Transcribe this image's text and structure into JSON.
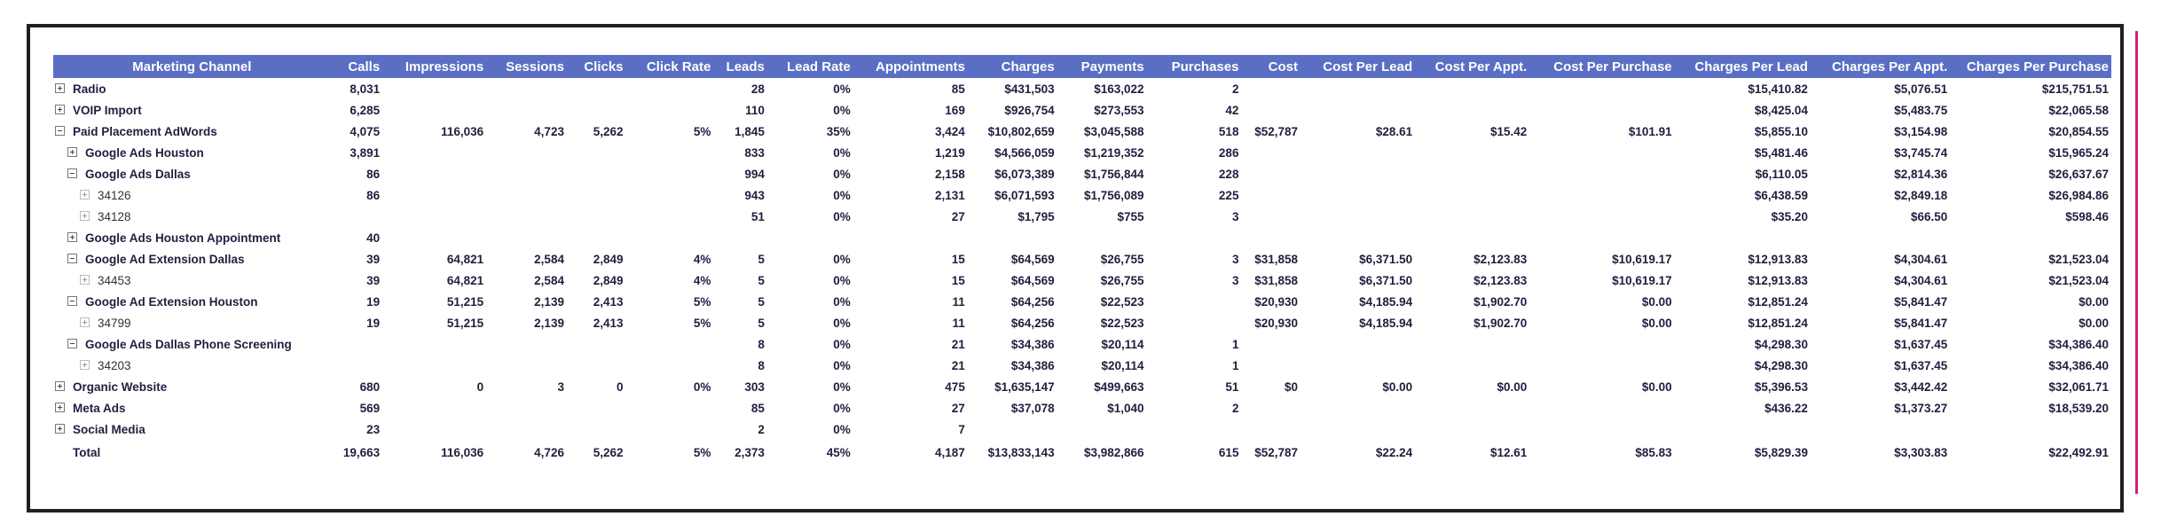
{
  "table": {
    "columns": [
      "Marketing Channel",
      "Calls",
      "Impressions",
      "Sessions",
      "Clicks",
      "Click Rate",
      "Leads",
      "Lead Rate",
      "Appointments",
      "Charges",
      "Payments",
      "Purchases",
      "Cost",
      "Cost Per Lead",
      "Cost Per Appt.",
      "Cost Per Purchase",
      "Charges Per Lead",
      "Charges Per Appt.",
      "Charges Per Purchase"
    ],
    "rows": [
      {
        "level": 0,
        "expander": "plus",
        "cells": [
          "Radio",
          "8,031",
          "",
          "",
          "",
          "",
          "28",
          "0%",
          "85",
          "$431,503",
          "$163,022",
          "2",
          "",
          "",
          "",
          "",
          "$15,410.82",
          "$5,076.51",
          "$215,751.51"
        ]
      },
      {
        "level": 0,
        "expander": "plus",
        "cells": [
          "VOIP Import",
          "6,285",
          "",
          "",
          "",
          "",
          "110",
          "0%",
          "169",
          "$926,754",
          "$273,553",
          "42",
          "",
          "",
          "",
          "",
          "$8,425.04",
          "$5,483.75",
          "$22,065.58"
        ]
      },
      {
        "level": 0,
        "expander": "minus",
        "cells": [
          "Paid Placement AdWords",
          "4,075",
          "116,036",
          "4,723",
          "5,262",
          "5%",
          "1,845",
          "35%",
          "3,424",
          "$10,802,659",
          "$3,045,588",
          "518",
          "$52,787",
          "$28.61",
          "$15.42",
          "$101.91",
          "$5,855.10",
          "$3,154.98",
          "$20,854.55"
        ]
      },
      {
        "level": 1,
        "expander": "plus",
        "cells": [
          "Google Ads Houston",
          "3,891",
          "",
          "",
          "",
          "",
          "833",
          "0%",
          "1,219",
          "$4,566,059",
          "$1,219,352",
          "286",
          "",
          "",
          "",
          "",
          "$5,481.46",
          "$3,745.74",
          "$15,965.24"
        ]
      },
      {
        "level": 1,
        "expander": "minus",
        "cells": [
          "Google Ads Dallas",
          "86",
          "",
          "",
          "",
          "",
          "994",
          "0%",
          "2,158",
          "$6,073,389",
          "$1,756,844",
          "228",
          "",
          "",
          "",
          "",
          "$6,110.05",
          "$2,814.36",
          "$26,637.67"
        ]
      },
      {
        "level": 2,
        "expander": "plus",
        "cells": [
          "34126",
          "86",
          "",
          "",
          "",
          "",
          "943",
          "0%",
          "2,131",
          "$6,071,593",
          "$1,756,089",
          "225",
          "",
          "",
          "",
          "",
          "$6,438.59",
          "$2,849.18",
          "$26,984.86"
        ]
      },
      {
        "level": 2,
        "expander": "plus",
        "cells": [
          "34128",
          "",
          "",
          "",
          "",
          "",
          "51",
          "0%",
          "27",
          "$1,795",
          "$755",
          "3",
          "",
          "",
          "",
          "",
          "$35.20",
          "$66.50",
          "$598.46"
        ]
      },
      {
        "level": 1,
        "expander": "plus",
        "cells": [
          "Google Ads Houston Appointment",
          "40",
          "",
          "",
          "",
          "",
          "",
          "",
          "",
          "",
          "",
          "",
          "",
          "",
          "",
          "",
          "",
          "",
          ""
        ]
      },
      {
        "level": 1,
        "expander": "minus",
        "cells": [
          "Google Ad Extension Dallas",
          "39",
          "64,821",
          "2,584",
          "2,849",
          "4%",
          "5",
          "0%",
          "15",
          "$64,569",
          "$26,755",
          "3",
          "$31,858",
          "$6,371.50",
          "$2,123.83",
          "$10,619.17",
          "$12,913.83",
          "$4,304.61",
          "$21,523.04"
        ]
      },
      {
        "level": 2,
        "expander": "plus",
        "cells": [
          "34453",
          "39",
          "64,821",
          "2,584",
          "2,849",
          "4%",
          "5",
          "0%",
          "15",
          "$64,569",
          "$26,755",
          "3",
          "$31,858",
          "$6,371.50",
          "$2,123.83",
          "$10,619.17",
          "$12,913.83",
          "$4,304.61",
          "$21,523.04"
        ]
      },
      {
        "level": 1,
        "expander": "minus",
        "cells": [
          "Google Ad Extension Houston",
          "19",
          "51,215",
          "2,139",
          "2,413",
          "5%",
          "5",
          "0%",
          "11",
          "$64,256",
          "$22,523",
          "",
          "$20,930",
          "$4,185.94",
          "$1,902.70",
          "$0.00",
          "$12,851.24",
          "$5,841.47",
          "$0.00"
        ]
      },
      {
        "level": 2,
        "expander": "plus",
        "cells": [
          "34799",
          "19",
          "51,215",
          "2,139",
          "2,413",
          "5%",
          "5",
          "0%",
          "11",
          "$64,256",
          "$22,523",
          "",
          "$20,930",
          "$4,185.94",
          "$1,902.70",
          "$0.00",
          "$12,851.24",
          "$5,841.47",
          "$0.00"
        ]
      },
      {
        "level": 1,
        "expander": "minus",
        "cells": [
          "Google Ads Dallas Phone Screening",
          "",
          "",
          "",
          "",
          "",
          "8",
          "0%",
          "21",
          "$34,386",
          "$20,114",
          "1",
          "",
          "",
          "",
          "",
          "$4,298.30",
          "$1,637.45",
          "$34,386.40"
        ]
      },
      {
        "level": 2,
        "expander": "plus",
        "cells": [
          "34203",
          "",
          "",
          "",
          "",
          "",
          "8",
          "0%",
          "21",
          "$34,386",
          "$20,114",
          "1",
          "",
          "",
          "",
          "",
          "$4,298.30",
          "$1,637.45",
          "$34,386.40"
        ]
      },
      {
        "level": 0,
        "expander": "plus",
        "cells": [
          "Organic Website",
          "680",
          "0",
          "3",
          "0",
          "0%",
          "303",
          "0%",
          "475",
          "$1,635,147",
          "$499,663",
          "51",
          "$0",
          "$0.00",
          "$0.00",
          "$0.00",
          "$5,396.53",
          "$3,442.42",
          "$32,061.71"
        ]
      },
      {
        "level": 0,
        "expander": "plus",
        "cells": [
          "Meta Ads",
          "569",
          "",
          "",
          "",
          "",
          "85",
          "0%",
          "27",
          "$37,078",
          "$1,040",
          "2",
          "",
          "",
          "",
          "",
          "$436.22",
          "$1,373.27",
          "$18,539.20"
        ]
      },
      {
        "level": 0,
        "expander": "plus",
        "cells": [
          "Social Media",
          "23",
          "",
          "",
          "",
          "",
          "2",
          "0%",
          "7",
          "",
          "",
          "",
          "",
          "",
          "",
          "",
          "",
          "",
          ""
        ]
      },
      {
        "level": 0,
        "expander": "none",
        "total": true,
        "cells": [
          "Total",
          "19,663",
          "116,036",
          "4,726",
          "5,262",
          "5%",
          "2,373",
          "45%",
          "4,187",
          "$13,833,143",
          "$3,982,866",
          "615",
          "$52,787",
          "$22.24",
          "$12.61",
          "$85.83",
          "$5,829.39",
          "$3,303.83",
          "$22,492.91"
        ]
      }
    ]
  }
}
